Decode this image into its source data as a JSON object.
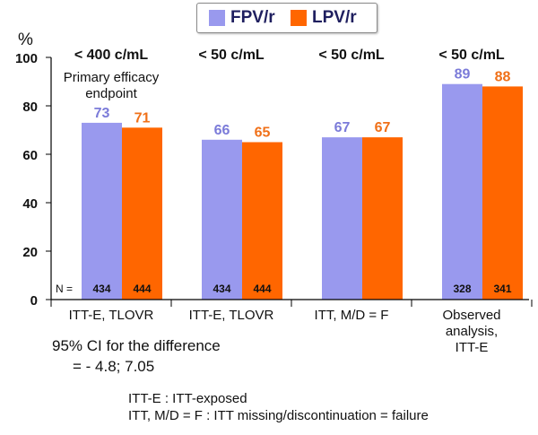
{
  "chart_data": {
    "type": "bar",
    "y_unit": "%",
    "ylim": [
      0,
      100
    ],
    "yticks": [
      0,
      20,
      40,
      60,
      80,
      100
    ],
    "grid": false,
    "legend_position": "top-center",
    "n_label": "N =",
    "series": [
      {
        "name": "FPV/r",
        "color": "#9999ee",
        "label_color": "#7b7bd9",
        "values": [
          73,
          66,
          67,
          89
        ],
        "n": [
          434,
          434,
          null,
          328
        ]
      },
      {
        "name": "LPV/r",
        "color": "#ff6600",
        "label_color": "#f07018",
        "values": [
          71,
          65,
          67,
          88
        ],
        "n": [
          444,
          444,
          null,
          341
        ]
      }
    ],
    "groups": [
      {
        "header": "< 400 c/mL",
        "sub": [
          "Primary efficacy",
          "endpoint"
        ],
        "category": [
          "ITT-E, TLOVR"
        ]
      },
      {
        "header": "< 50 c/mL",
        "sub": [],
        "category": [
          "ITT-E, TLOVR"
        ]
      },
      {
        "header": "< 50 c/mL",
        "sub": [],
        "category": [
          "ITT, M/D = F"
        ]
      },
      {
        "header": "< 50 c/mL",
        "sub": [],
        "category": [
          "Observed",
          "analysis,",
          "ITT-E"
        ]
      }
    ]
  },
  "ci_note": {
    "line1": "95% CI for the difference",
    "line2": "= - 4.8; 7.05"
  },
  "footnotes": [
    "ITT-E : ITT-exposed",
    "ITT, M/D = F : ITT missing/discontinuation = failure"
  ]
}
